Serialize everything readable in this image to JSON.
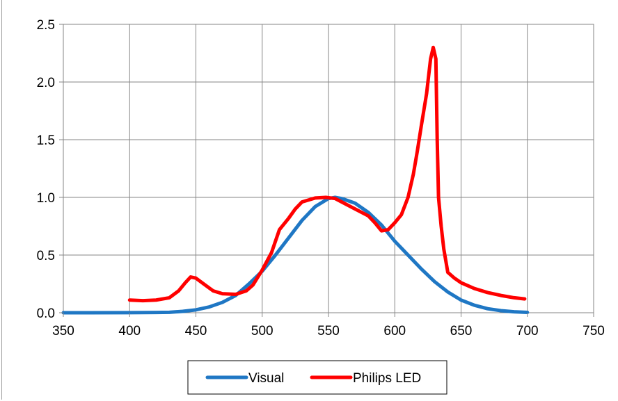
{
  "chart_data": {
    "type": "line",
    "title": "",
    "xlabel": "",
    "ylabel": "",
    "xlim": [
      350,
      750
    ],
    "ylim": [
      0,
      2.5
    ],
    "x_ticks": [
      350,
      400,
      450,
      500,
      550,
      600,
      650,
      700,
      750
    ],
    "y_ticks": [
      0.0,
      0.5,
      1.0,
      1.5,
      2.0,
      2.5
    ],
    "x_tick_labels": [
      "350",
      "400",
      "450",
      "500",
      "550",
      "600",
      "650",
      "700",
      "750"
    ],
    "y_tick_labels": [
      "0.0",
      "0.5",
      "1.0",
      "1.5",
      "2.0",
      "2.5"
    ],
    "grid": true,
    "legend_position": "bottom",
    "series": [
      {
        "name": "Visual",
        "color": "#1f77c4",
        "points": [
          [
            350,
            0.0
          ],
          [
            400,
            0.0005
          ],
          [
            420,
            0.002
          ],
          [
            430,
            0.004
          ],
          [
            440,
            0.012
          ],
          [
            450,
            0.025
          ],
          [
            460,
            0.05
          ],
          [
            470,
            0.09
          ],
          [
            480,
            0.15
          ],
          [
            490,
            0.25
          ],
          [
            500,
            0.36
          ],
          [
            510,
            0.5
          ],
          [
            520,
            0.65
          ],
          [
            530,
            0.8
          ],
          [
            540,
            0.92
          ],
          [
            550,
            0.99
          ],
          [
            555,
            1.0
          ],
          [
            560,
            0.99
          ],
          [
            570,
            0.95
          ],
          [
            580,
            0.87
          ],
          [
            590,
            0.76
          ],
          [
            600,
            0.62
          ],
          [
            610,
            0.5
          ],
          [
            620,
            0.38
          ],
          [
            630,
            0.27
          ],
          [
            640,
            0.18
          ],
          [
            650,
            0.11
          ],
          [
            660,
            0.065
          ],
          [
            670,
            0.035
          ],
          [
            680,
            0.018
          ],
          [
            690,
            0.008
          ],
          [
            700,
            0.003
          ]
        ]
      },
      {
        "name": "Philips LED",
        "color": "#ff0000",
        "points": [
          [
            400,
            0.11
          ],
          [
            410,
            0.105
          ],
          [
            420,
            0.11
          ],
          [
            430,
            0.13
          ],
          [
            437,
            0.19
          ],
          [
            442,
            0.26
          ],
          [
            446,
            0.31
          ],
          [
            450,
            0.3
          ],
          [
            457,
            0.24
          ],
          [
            463,
            0.19
          ],
          [
            470,
            0.165
          ],
          [
            480,
            0.16
          ],
          [
            488,
            0.19
          ],
          [
            493,
            0.24
          ],
          [
            500,
            0.37
          ],
          [
            507,
            0.52
          ],
          [
            513,
            0.72
          ],
          [
            520,
            0.82
          ],
          [
            525,
            0.9
          ],
          [
            530,
            0.96
          ],
          [
            540,
            0.995
          ],
          [
            548,
            1.0
          ],
          [
            555,
            0.99
          ],
          [
            560,
            0.96
          ],
          [
            570,
            0.9
          ],
          [
            580,
            0.84
          ],
          [
            585,
            0.78
          ],
          [
            590,
            0.71
          ],
          [
            595,
            0.72
          ],
          [
            600,
            0.78
          ],
          [
            605,
            0.85
          ],
          [
            610,
            1.0
          ],
          [
            614,
            1.2
          ],
          [
            617,
            1.4
          ],
          [
            620,
            1.62
          ],
          [
            624,
            1.9
          ],
          [
            627,
            2.2
          ],
          [
            629,
            2.3
          ],
          [
            631,
            2.2
          ],
          [
            632,
            1.5
          ],
          [
            633,
            1.0
          ],
          [
            635,
            0.75
          ],
          [
            637,
            0.55
          ],
          [
            640,
            0.35
          ],
          [
            645,
            0.3
          ],
          [
            650,
            0.26
          ],
          [
            660,
            0.21
          ],
          [
            670,
            0.175
          ],
          [
            680,
            0.15
          ],
          [
            690,
            0.13
          ],
          [
            698,
            0.12
          ]
        ]
      }
    ]
  }
}
